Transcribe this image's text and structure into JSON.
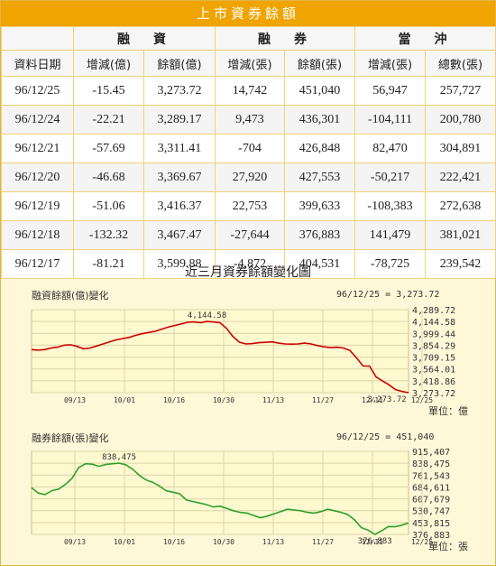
{
  "page": {
    "title": "上市資券餘額"
  },
  "table": {
    "group_headers": [
      "融　資",
      "融　券",
      "當　沖"
    ],
    "date_header": "資料日期",
    "sub_headers": [
      "增減(億)",
      "餘額(億)",
      "增減(張)",
      "餘額(張)",
      "增減(張)",
      "總數(張)"
    ],
    "rows": [
      [
        "96/12/25",
        "-15.45",
        "3,273.72",
        "14,742",
        "451,040",
        "56,947",
        "257,727"
      ],
      [
        "96/12/24",
        "-22.21",
        "3,289.17",
        "9,473",
        "436,301",
        "-104,111",
        "200,780"
      ],
      [
        "96/12/21",
        "-57.69",
        "3,311.41",
        "-704",
        "426,848",
        "82,470",
        "304,891"
      ],
      [
        "96/12/20",
        "-46.68",
        "3,369.67",
        "27,920",
        "427,553",
        "-50,217",
        "222,421"
      ],
      [
        "96/12/19",
        "-51.06",
        "3,416.37",
        "22,753",
        "399,633",
        "-108,383",
        "272,638"
      ],
      [
        "96/12/18",
        "-132.32",
        "3,467.47",
        "-27,644",
        "376,883",
        "141,479",
        "381,021"
      ],
      [
        "96/12/17",
        "-81.21",
        "3,599.88",
        "-4,872",
        "404,531",
        "-78,725",
        "239,542"
      ]
    ]
  },
  "charts_title": "近三月資券餘額變化圖",
  "chart_data": [
    {
      "type": "line",
      "title": "融資餘額(億)變化",
      "readout": "96/12/25 = 3,273.72",
      "unit_label": "單位：億",
      "x_ticks": [
        "09/13",
        "10/01",
        "10/16",
        "10/30",
        "11/13",
        "11/27",
        "12/11",
        "12/25"
      ],
      "y_ticks": [
        "4,289.72",
        "4,144.58",
        "3,999.44",
        "3,854.29",
        "3,709.15",
        "3,564.01",
        "3,418.86",
        "3,273.72"
      ],
      "ylim": [
        3273.72,
        4289.72
      ],
      "annotations": [
        {
          "text": "4,144.58",
          "value": 4144.58
        },
        {
          "text": "3,273.72",
          "value": 3273.72
        }
      ],
      "series": [
        {
          "color": "#cc0000",
          "values": [
            3800,
            3795,
            3800,
            3820,
            3830,
            3855,
            3860,
            3840,
            3810,
            3820,
            3845,
            3870,
            3895,
            3920,
            3935,
            3950,
            3975,
            3995,
            4010,
            4025,
            4050,
            4075,
            4095,
            4115,
            4135,
            4140,
            4130,
            4144.58,
            4138,
            4130,
            4060,
            3960,
            3890,
            3870,
            3875,
            3885,
            3890,
            3895,
            3880,
            3870,
            3868,
            3870,
            3880,
            3870,
            3850,
            3835,
            3825,
            3830,
            3820,
            3790,
            3700,
            3600,
            3599.88,
            3467.47,
            3416.37,
            3369.67,
            3311.41,
            3289.17,
            3273.72
          ]
        }
      ]
    },
    {
      "type": "line",
      "title": "融券餘額(張)變化",
      "readout": "96/12/25 = 451,040",
      "unit_label": "單位：張",
      "x_ticks": [
        "09/13",
        "10/01",
        "10/16",
        "10/30",
        "11/13",
        "11/27",
        "12/11",
        "12/25"
      ],
      "y_ticks": [
        "915,407",
        "838,475",
        "761,543",
        "684,611",
        "607,679",
        "530,747",
        "453,815",
        "376,883"
      ],
      "ylim": [
        376883,
        915407
      ],
      "annotations": [
        {
          "text": "838,475",
          "value": 838475
        },
        {
          "text": "376,883",
          "value": 376883
        }
      ],
      "series": [
        {
          "color": "#2ca02c",
          "values": [
            680000,
            645000,
            635000,
            660000,
            670000,
            700000,
            740000,
            810000,
            835000,
            832000,
            818000,
            830000,
            835000,
            838475,
            828000,
            800000,
            760000,
            730000,
            715000,
            690000,
            660000,
            650000,
            640000,
            600000,
            590000,
            580000,
            570000,
            555000,
            560000,
            545000,
            530000,
            520000,
            515000,
            500000,
            485000,
            495000,
            510000,
            525000,
            540000,
            535000,
            530000,
            520000,
            515000,
            525000,
            540000,
            530000,
            520000,
            505000,
            470000,
            420000,
            404531,
            376883,
            399633,
            427553,
            426848,
            436301,
            451040
          ]
        }
      ]
    }
  ]
}
